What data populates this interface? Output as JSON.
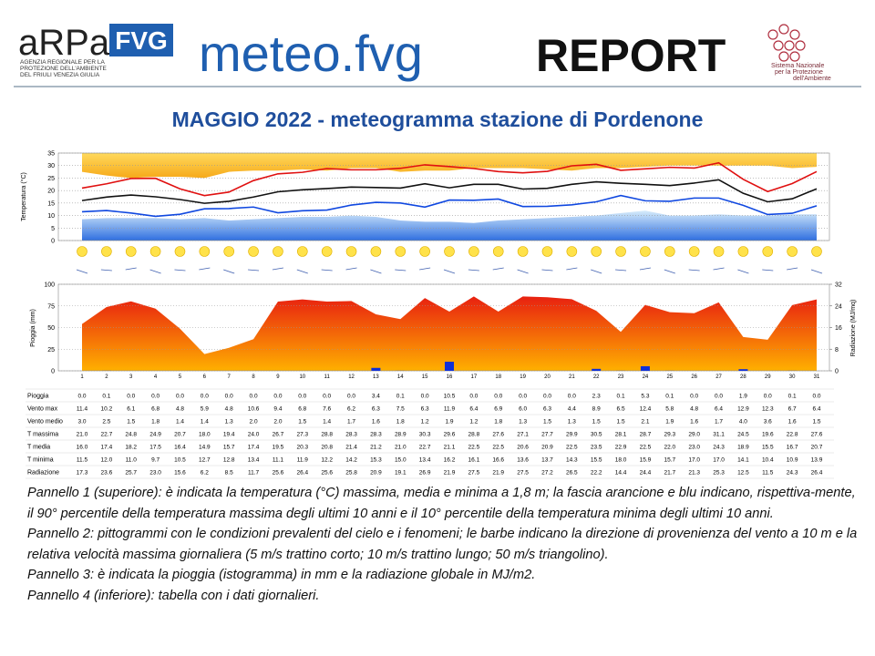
{
  "header": {
    "logo_left": "aRPa",
    "logo_left_box": "FVG",
    "agency": [
      "AGENZIA REGIONALE PER LA",
      "PROTEZIONE DELL'AMBIENTE",
      "DEL FRIULI VENEZIA GIULIA"
    ],
    "brand": "meteo.fvg",
    "report": "REPORT",
    "logo_right": [
      "Sistema Nazionale",
      "per la Protezione",
      "dell'Ambiente"
    ]
  },
  "title": "MAGGIO 2022 - meteogramma  stazione di Pordenone",
  "chart_data": [
    {
      "type": "line",
      "ylabel": "Temperatura (°C)",
      "ylim": [
        0,
        35
      ],
      "yticks": [
        0,
        5,
        10,
        15,
        20,
        25,
        30,
        35
      ],
      "grid": true,
      "band_high": {
        "color": "#f6a800",
        "values": [
          27.5,
          26,
          25,
          25.5,
          25.5,
          25,
          27.5,
          28,
          28,
          28.5,
          28,
          29,
          29,
          27.5,
          28,
          28,
          29,
          29,
          29,
          28.5,
          28,
          29,
          29,
          29.5,
          30,
          30,
          30,
          30,
          30,
          29,
          29.5
        ]
      },
      "band_low": {
        "color": "#2f7de6",
        "values": [
          8.5,
          9,
          9,
          9,
          8.5,
          9,
          8,
          8.5,
          9,
          9.5,
          9.5,
          10,
          9.5,
          8,
          7.5,
          7.5,
          7,
          8,
          8.5,
          9,
          9.5,
          10,
          11,
          12,
          10,
          10,
          10.5,
          10,
          10,
          10.5,
          10.5
        ]
      },
      "series": [
        {
          "name": "T massima",
          "color": "#e01010",
          "values": [
            21.0,
            22.7,
            24.8,
            24.9,
            20.7,
            18.0,
            19.4,
            24.0,
            26.7,
            27.3,
            28.8,
            28.3,
            28.3,
            28.9,
            30.3,
            29.6,
            28.8,
            27.6,
            27.1,
            27.7,
            29.9,
            30.5,
            28.1,
            28.7,
            29.3,
            29.0,
            31.1,
            24.5,
            19.6,
            22.8,
            27.6
          ],
          "value_labels": [
            "21.0",
            "22.7",
            "24.8",
            "24.9",
            "20.7",
            "18.0",
            "19.4",
            "24.0",
            "26.7",
            "27.3",
            "28.8",
            "28.3",
            "28.3",
            "28.9",
            "30.3",
            "29.6",
            "28.8",
            "27.6",
            "27.1",
            "27.7",
            "29.9",
            "30.5",
            "28.1",
            "28.7",
            "29.3",
            "29.0",
            "31.1",
            "24.5",
            "19.6",
            "22.8",
            "27.6"
          ]
        },
        {
          "name": "T media",
          "color": "#111111",
          "values": [
            16.0,
            17.4,
            18.2,
            17.5,
            16.4,
            14.9,
            15.7,
            17.4,
            19.5,
            20.3,
            20.8,
            21.4,
            21.2,
            21.0,
            22.7,
            21.1,
            22.5,
            22.5,
            20.6,
            20.9,
            22.5,
            23.5,
            22.9,
            22.5,
            22.0,
            23.0,
            24.3,
            18.9,
            15.5,
            16.7,
            20.7
          ],
          "value_labels": [
            "16.0",
            "17.4",
            "18.2",
            "17.5",
            "16.4",
            "14.9",
            "15.7",
            "17.4",
            "19.5",
            "20.3",
            "20.8",
            "21.4",
            "21.2",
            "21.0",
            "22.7",
            "21.1",
            "22.5",
            "22.5",
            "20.6",
            "20.9",
            "22.5",
            "23.5",
            "22.9",
            "22.5",
            "22.0",
            "23.0",
            "24.3",
            "18.9",
            "15.5",
            "16.7",
            "20.7"
          ]
        },
        {
          "name": "T minima",
          "color": "#1048e0",
          "values": [
            11.5,
            12.0,
            11.0,
            9.7,
            10.5,
            12.7,
            12.8,
            13.4,
            11.1,
            11.9,
            12.2,
            14.2,
            15.3,
            15.0,
            13.4,
            16.2,
            16.1,
            16.6,
            13.6,
            13.7,
            14.3,
            15.5,
            18.0,
            15.9,
            15.7,
            17.0,
            17.0,
            14.1,
            10.4,
            10.9,
            13.9
          ],
          "value_labels": [
            "11.5",
            "12.0",
            "11.0",
            "9.7",
            "10.5",
            "12.7",
            "12.8",
            "13.4",
            "11.1",
            "11.9",
            "12.2",
            "14.2",
            "15.3",
            "15.0",
            "13.4",
            "16.2",
            "16.1",
            "16.6",
            "13.6",
            "13.7",
            "14.3",
            "15.5",
            "18.0",
            "15.9",
            "15.7",
            "17.0",
            "17.0",
            "14.1",
            "10.4",
            "10.9",
            "13.9"
          ]
        }
      ]
    },
    {
      "type": "bar",
      "ylabel": "Pioggia (mm)",
      "y2label": "Radiazione (MJ/mq)",
      "categories": [
        "1",
        "2",
        "3",
        "4",
        "5",
        "6",
        "7",
        "8",
        "9",
        "10",
        "11",
        "12",
        "13",
        "14",
        "15",
        "16",
        "17",
        "18",
        "19",
        "20",
        "21",
        "22",
        "23",
        "24",
        "25",
        "26",
        "27",
        "28",
        "29",
        "30",
        "31"
      ],
      "ylim": [
        0,
        100
      ],
      "yticks": [
        0,
        25,
        50,
        75,
        100
      ],
      "y2lim": [
        0,
        32
      ],
      "y2ticks": [
        0,
        8,
        16,
        24,
        32
      ],
      "grid": true,
      "series": [
        {
          "name": "Pioggia",
          "color": "#1030d8",
          "values": [
            0.0,
            0.1,
            0.0,
            0.0,
            0.0,
            0.0,
            0.0,
            0.0,
            0.0,
            0.0,
            0.0,
            0.0,
            3.4,
            0.1,
            0.0,
            10.5,
            0.0,
            0.0,
            0.0,
            0.0,
            0.0,
            2.3,
            0.1,
            5.3,
            0.1,
            0.0,
            0.0,
            1.9,
            0.0,
            0.1,
            0.0
          ],
          "value_labels": [
            "0.0",
            "0.1",
            "0.0",
            "0.0",
            "0.0",
            "0.0",
            "0.0",
            "0.0",
            "0.0",
            "0.0",
            "0.0",
            "0.0",
            "3.4",
            "0.1",
            "0.0",
            "10.5",
            "0.0",
            "0.0",
            "0.0",
            "0.0",
            "0.0",
            "2.3",
            "0.1",
            "5.3",
            "0.1",
            "0.0",
            "0.0",
            "1.9",
            "0.0",
            "0.1",
            "0.0"
          ]
        },
        {
          "name": "Radiazione",
          "color": "#f04010",
          "axis": "y2",
          "values": [
            17.3,
            23.6,
            25.7,
            23.0,
            15.6,
            6.2,
            8.5,
            11.7,
            25.6,
            26.4,
            25.6,
            25.8,
            20.9,
            19.1,
            26.9,
            21.9,
            27.5,
            21.9,
            27.5,
            27.2,
            26.5,
            22.2,
            14.4,
            24.4,
            21.7,
            21.3,
            25.3,
            12.5,
            11.5,
            24.3,
            26.4
          ],
          "value_labels": [
            "17.3",
            "23.6",
            "25.7",
            "23.0",
            "15.6",
            "6.2",
            "8.5",
            "11.7",
            "25.6",
            "26.4",
            "25.6",
            "25.8",
            "20.9",
            "19.1",
            "26.9",
            "21.9",
            "27.5",
            "21.9",
            "27.5",
            "27.2",
            "26.5",
            "22.2",
            "14.4",
            "24.4",
            "21.7",
            "21.3",
            "25.3",
            "12.5",
            "11.5",
            "24.3",
            "26.4"
          ]
        }
      ]
    }
  ],
  "wind": {
    "rows": [
      {
        "name": "Vento max",
        "values": [
          "11.4",
          "10.2",
          "6.1",
          "6.8",
          "4.8",
          "5.9",
          "4.8",
          "10.6",
          "9.4",
          "6.8",
          "7.6",
          "6.2",
          "6.3",
          "7.5",
          "6.3",
          "11.9",
          "6.4",
          "6.9",
          "6.0",
          "6.3",
          "4.4",
          "8.9",
          "6.5",
          "12.4",
          "5.8",
          "4.8",
          "6.4",
          "12.9",
          "12.3",
          "6.7",
          "6.4"
        ]
      },
      {
        "name": "Vento medio",
        "values": [
          "3.0",
          "2.5",
          "1.5",
          "1.8",
          "1.4",
          "1.4",
          "1.3",
          "2.0",
          "2.0",
          "1.5",
          "1.4",
          "1.7",
          "1.6",
          "1.8",
          "1.2",
          "1.9",
          "1.2",
          "1.8",
          "1.3",
          "1.5",
          "1.3",
          "1.5",
          "1.5",
          "2.1",
          "1.9",
          "1.6",
          "1.7",
          "4.0",
          "3.6",
          "1.6",
          "1.5"
        ]
      }
    ]
  },
  "caption": [
    "Pannello 1 (superiore): è indicata la temperatura (°C) massima, media e minima a 1,8 m; la fascia arancione e blu indicano, rispettiva-mente, il 90° percentile della temperatura massima degli ultimi 10 anni e il 10° percentile della temperatura minima degli ultimi 10 anni.",
    "Pannello 2: pittogrammi con le condizioni prevalenti del cielo e i fenomeni; le barbe indicano la direzione di provenienza del vento a 10 m e la relativa velocità massima giornaliera (5 m/s trattino corto; 10 m/s trattino lungo; 50 m/s triangolino).",
    "Pannello 3: è indicata la pioggia (istogramma) in mm e la radiazione globale in MJ/m2.",
    "Pannello 4 (inferiore): tabella con i dati giornalieri."
  ]
}
